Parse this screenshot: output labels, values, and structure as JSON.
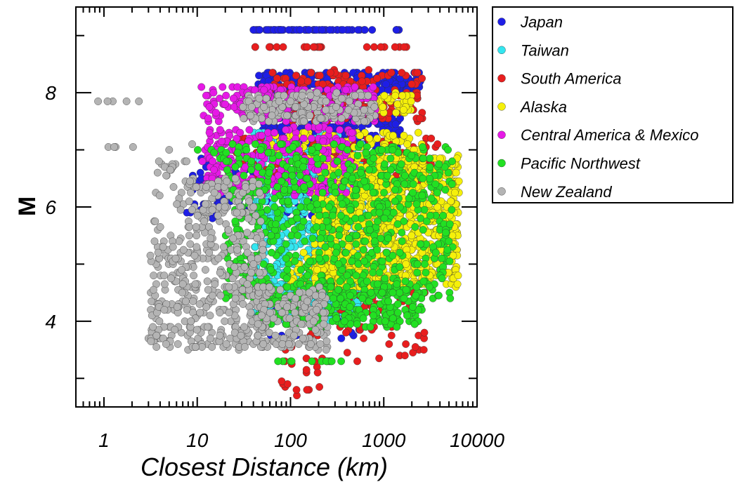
{
  "chart_data": {
    "type": "scatter",
    "title": "",
    "xlabel": "Closest Distance (km)",
    "ylabel": "M",
    "xscale": "log",
    "xlim": [
      0.5,
      10000
    ],
    "ylim": [
      2.5,
      9.5
    ],
    "x_tick_labels": [
      "1",
      "10",
      "100",
      "1000",
      "10000"
    ],
    "x_ticks": [
      1,
      10,
      100,
      1000,
      10000
    ],
    "y_tick_labels": [
      "4",
      "6",
      "8"
    ],
    "y_ticks": [
      4,
      6,
      8
    ],
    "grid": false,
    "legend_position": "outside-right",
    "series": [
      {
        "name": "Japan",
        "color": "#1e1ee6",
        "clusters": [
          {
            "x": [
              40,
              800
            ],
            "y": [
              9.1,
              9.1
            ],
            "n": 60
          },
          {
            "x": [
              900,
              2200
            ],
            "y": [
              9.1,
              9.1
            ],
            "n": 4
          },
          {
            "x": [
              45,
              2500
            ],
            "y": [
              8.0,
              8.35
            ],
            "n": 220
          },
          {
            "x": [
              50,
              1500
            ],
            "y": [
              7.0,
              7.6
            ],
            "n": 200
          },
          {
            "x": [
              8,
              400
            ],
            "y": [
              5.8,
              6.9
            ],
            "n": 110
          },
          {
            "x": [
              4,
              30
            ],
            "y": [
              5.8,
              6.1
            ],
            "n": 8
          },
          {
            "x": [
              60,
              600
            ],
            "y": [
              3.7,
              4.5
            ],
            "n": 30
          }
        ]
      },
      {
        "name": "Taiwan",
        "color": "#33e6f0",
        "clusters": [
          {
            "x": [
              40,
              600
            ],
            "y": [
              4.0,
              7.3
            ],
            "n": 700
          },
          {
            "x": [
              80,
              350
            ],
            "y": [
              4.0,
              4.5
            ],
            "n": 80
          }
        ]
      },
      {
        "name": "South America",
        "color": "#e81e1e",
        "clusters": [
          {
            "x": [
              35,
              250
            ],
            "y": [
              8.8,
              8.8
            ],
            "n": 14
          },
          {
            "x": [
              650,
              1900
            ],
            "y": [
              8.8,
              8.8
            ],
            "n": 8
          },
          {
            "x": [
              60,
              2600
            ],
            "y": [
              7.5,
              8.4
            ],
            "n": 180
          },
          {
            "x": [
              25,
              4500
            ],
            "y": [
              6.4,
              7.2
            ],
            "n": 140
          },
          {
            "x": [
              300,
              2800
            ],
            "y": [
              3.3,
              4.8
            ],
            "n": 50
          },
          {
            "x": [
              80,
              250
            ],
            "y": [
              2.7,
              3.9
            ],
            "n": 26
          }
        ]
      },
      {
        "name": "Alaska",
        "color": "#f5f00a",
        "clusters": [
          {
            "x": [
              700,
              2000
            ],
            "y": [
              7.6,
              8.0
            ],
            "n": 40
          },
          {
            "x": [
              60,
              2600
            ],
            "y": [
              6.8,
              7.3
            ],
            "n": 120
          },
          {
            "x": [
              180,
              6500
            ],
            "y": [
              4.6,
              6.9
            ],
            "n": 1000
          },
          {
            "x": [
              100,
              1800
            ],
            "y": [
              4.4,
              5.2
            ],
            "n": 120
          }
        ]
      },
      {
        "name": "Central America & Mexico",
        "color": "#e619e6",
        "clusters": [
          {
            "x": [
              11,
              900
            ],
            "y": [
              7.5,
              8.1
            ],
            "n": 200
          },
          {
            "x": [
              12,
              500
            ],
            "y": [
              6.2,
              7.4
            ],
            "n": 260
          },
          {
            "x": [
              10,
              40
            ],
            "y": [
              6.3,
              6.8
            ],
            "n": 20
          }
        ]
      },
      {
        "name": "Pacific Northwest",
        "color": "#22e022",
        "clusters": [
          {
            "x": [
              7,
              40
            ],
            "y": [
              6.8,
              7.1
            ],
            "n": 12
          },
          {
            "x": [
              20,
              5500
            ],
            "y": [
              4.4,
              7.1
            ],
            "n": 700
          },
          {
            "x": [
              45,
              2600
            ],
            "y": [
              3.9,
              4.7
            ],
            "n": 260
          },
          {
            "x": [
              70,
              500
            ],
            "y": [
              3.3,
              3.3
            ],
            "n": 12
          }
        ]
      },
      {
        "name": "New Zealand",
        "color": "#b4b4b4",
        "clusters": [
          {
            "x": [
              0.8,
              3.2
            ],
            "y": [
              7.85,
              7.85
            ],
            "n": 5
          },
          {
            "x": [
              0.8,
              2.1
            ],
            "y": [
              7.07,
              7.07
            ],
            "n": 4
          },
          {
            "x": [
              3.2,
              10
            ],
            "y": [
              5.0,
              7.1
            ],
            "n": 50
          },
          {
            "x": [
              3,
              55
            ],
            "y": [
              3.5,
              5.4
            ],
            "n": 340
          },
          {
            "x": [
              8,
              50
            ],
            "y": [
              5.4,
              6.5
            ],
            "n": 120
          },
          {
            "x": [
              30,
              800
            ],
            "y": [
              7.5,
              8.0
            ],
            "n": 180
          },
          {
            "x": [
              40,
              250
            ],
            "y": [
              3.5,
              4.6
            ],
            "n": 160
          }
        ]
      }
    ]
  }
}
